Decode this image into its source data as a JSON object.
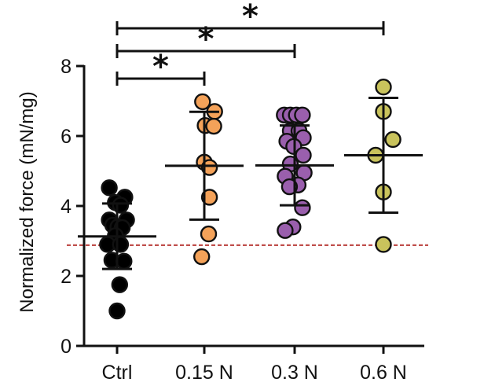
{
  "chart_data": {
    "type": "scatter",
    "ylabel": "Normalized force (mN/mg)",
    "ylim": [
      0,
      8
    ],
    "yticks": [
      0,
      2,
      4,
      6,
      8
    ],
    "categories": [
      "Ctrl",
      "0.15 N",
      "0.3 N",
      "0.6 N"
    ],
    "reference_line": {
      "y": 2.88,
      "color": "#c0504d",
      "style": "dashed"
    },
    "groups": [
      {
        "category": "Ctrl",
        "color": "#000000",
        "mean": 3.13,
        "sd_low": 2.2,
        "sd_high": 4.07,
        "points": [
          {
            "y": 4.52,
            "jitter": -0.45
          },
          {
            "y": 4.25,
            "jitter": 0.45
          },
          {
            "y": 4.1,
            "jitter": -0.1
          },
          {
            "y": 4.02,
            "jitter": 0.2
          },
          {
            "y": 3.6,
            "jitter": -0.45
          },
          {
            "y": 3.6,
            "jitter": 0.55
          },
          {
            "y": 3.45,
            "jitter": -0.25
          },
          {
            "y": 3.4,
            "jitter": 0.05
          },
          {
            "y": 3.38,
            "jitter": 0.3
          },
          {
            "y": 3.15,
            "jitter": -0.1
          },
          {
            "y": 2.9,
            "jitter": -0.55
          },
          {
            "y": 2.9,
            "jitter": 0.2
          },
          {
            "y": 2.45,
            "jitter": -0.3
          },
          {
            "y": 2.42,
            "jitter": 0.4
          },
          {
            "y": 1.75,
            "jitter": 0.15
          },
          {
            "y": 1.0,
            "jitter": 0.0
          }
        ]
      },
      {
        "category": "0.15 N",
        "color": "#f4a259",
        "mean": 5.15,
        "sd_low": 3.61,
        "sd_high": 6.69,
        "points": [
          {
            "y": 6.98,
            "jitter": -0.1
          },
          {
            "y": 6.7,
            "jitter": 0.6
          },
          {
            "y": 6.3,
            "jitter": 0.05
          },
          {
            "y": 6.28,
            "jitter": 0.55
          },
          {
            "y": 5.25,
            "jitter": 0.0
          },
          {
            "y": 5.1,
            "jitter": 0.3
          },
          {
            "y": 4.25,
            "jitter": 0.3
          },
          {
            "y": 3.2,
            "jitter": 0.25
          },
          {
            "y": 2.55,
            "jitter": -0.15
          }
        ]
      },
      {
        "category": "0.3 N",
        "color": "#9a5fad",
        "mean": 5.16,
        "sd_low": 4.02,
        "sd_high": 6.3,
        "points": [
          {
            "y": 6.6,
            "jitter": -0.6
          },
          {
            "y": 6.6,
            "jitter": -0.25
          },
          {
            "y": 6.6,
            "jitter": 0.1
          },
          {
            "y": 6.6,
            "jitter": 0.45
          },
          {
            "y": 6.15,
            "jitter": -0.25
          },
          {
            "y": 6.15,
            "jitter": 0.25
          },
          {
            "y": 5.95,
            "jitter": 0.5
          },
          {
            "y": 5.85,
            "jitter": -0.45
          },
          {
            "y": 5.7,
            "jitter": -0.05
          },
          {
            "y": 5.45,
            "jitter": 0.5
          },
          {
            "y": 5.2,
            "jitter": -0.25
          },
          {
            "y": 4.95,
            "jitter": 0.55
          },
          {
            "y": 4.85,
            "jitter": -0.55
          },
          {
            "y": 4.6,
            "jitter": 0.2
          },
          {
            "y": 4.55,
            "jitter": -0.3
          },
          {
            "y": 3.95,
            "jitter": 0.45
          },
          {
            "y": 3.4,
            "jitter": -0.1
          },
          {
            "y": 3.3,
            "jitter": -0.55
          }
        ]
      },
      {
        "category": "0.6 N",
        "color": "#c9c35c",
        "mean": 5.45,
        "sd_low": 3.81,
        "sd_high": 7.09,
        "points": [
          {
            "y": 7.4,
            "jitter": 0.0
          },
          {
            "y": 6.7,
            "jitter": 0.0
          },
          {
            "y": 5.9,
            "jitter": 0.55
          },
          {
            "y": 5.45,
            "jitter": -0.45
          },
          {
            "y": 4.4,
            "jitter": 0.0
          },
          {
            "y": 2.9,
            "jitter": 0.0
          }
        ]
      }
    ],
    "significance": [
      {
        "from": "Ctrl",
        "to": "0.15 N",
        "label": "*"
      },
      {
        "from": "Ctrl",
        "to": "0.3 N",
        "label": "*"
      },
      {
        "from": "Ctrl",
        "to": "0.6 N",
        "label": "*"
      }
    ]
  }
}
